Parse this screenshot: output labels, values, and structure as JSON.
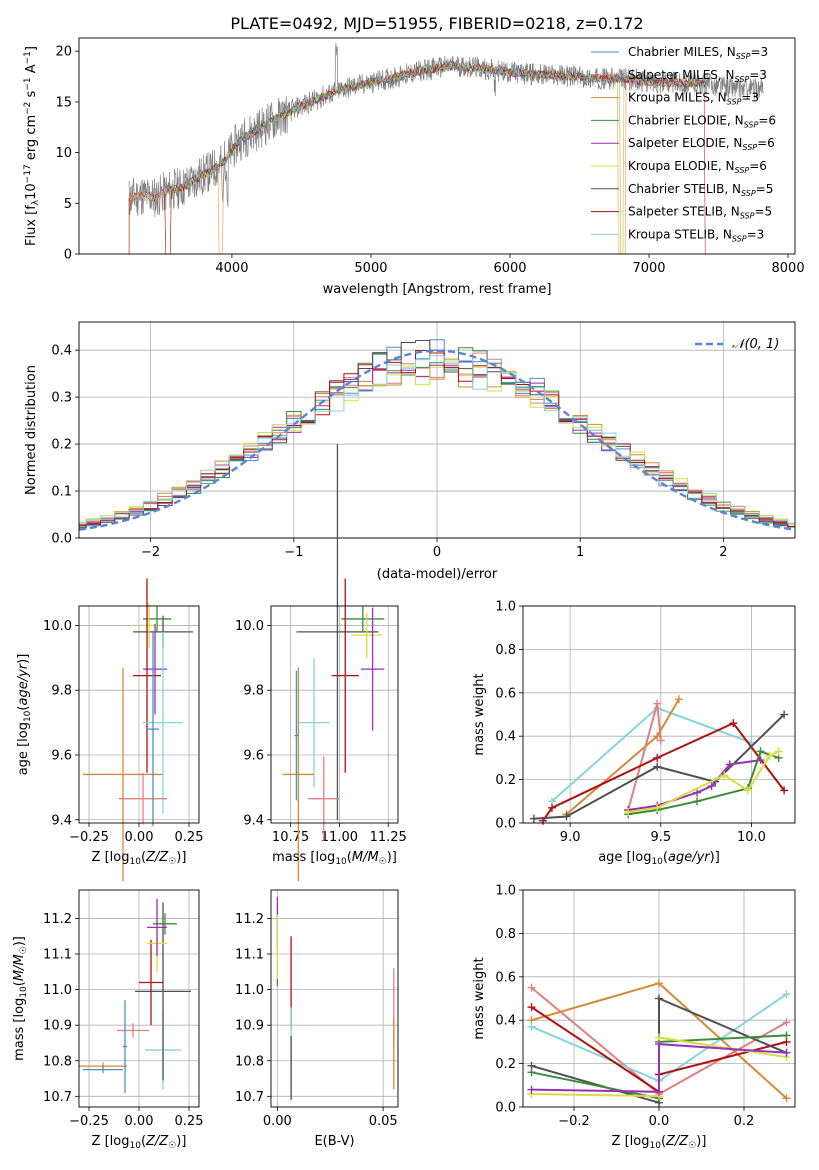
{
  "figure": {
    "title": "PLATE=0492, MJD=51955, FIBERID=0218, z=0.172"
  },
  "chart_data": [
    {
      "id": "spectrum",
      "type": "line",
      "xlabel": "wavelength [Angstrom, rest frame]",
      "ylabel": "Flux [f_λ10^-17 erg cm^-2 s^-1 A^-1]",
      "xlim": [
        2900,
        8050
      ],
      "ylim": [
        0,
        21.3
      ],
      "xticks": [
        "4000",
        "5000",
        "6000",
        "7000",
        "8000"
      ],
      "yticks": [
        "0",
        "5",
        "10",
        "15",
        "20"
      ],
      "grid": false,
      "legend_position": "top-right",
      "data_color": "#808080",
      "data_x_range": [
        3260,
        7820
      ],
      "data_notes": "observed spectrum (grey) overplotted with 9 model fits",
      "series": [
        {
          "name": "Chabrier MILES, N_SSP=3",
          "color": "#4d8fc6"
        },
        {
          "name": "Salpeter MILES, N_SSP=3",
          "color": "#e17f81"
        },
        {
          "name": "Kroupa MILES, N_SSP=3",
          "color": "#d58a38"
        },
        {
          "name": "Chabrier ELODIE, N_SSP=6",
          "color": "#3c8c3c"
        },
        {
          "name": "Salpeter ELODIE, N_SSP=6",
          "color": "#9b30b6"
        },
        {
          "name": "Kroupa ELODIE, N_SSP=6",
          "color": "#d4e040"
        },
        {
          "name": "Chabrier STELIB, N_SSP=5",
          "color": "#505050"
        },
        {
          "name": "Salpeter STELIB, N_SSP=5",
          "color": "#b01010"
        },
        {
          "name": "Kroupa STELIB, N_SSP=3",
          "color": "#86d4dc"
        }
      ],
      "anchors": [
        [
          3260,
          5.5
        ],
        [
          3350,
          5.8
        ],
        [
          3450,
          5.6
        ],
        [
          3550,
          6.3
        ],
        [
          3650,
          6.6
        ],
        [
          3750,
          7.5
        ],
        [
          3850,
          8.2
        ],
        [
          3950,
          9.2
        ],
        [
          4050,
          11.2
        ],
        [
          4150,
          12.0
        ],
        [
          4300,
          13.2
        ],
        [
          4450,
          14.3
        ],
        [
          4600,
          15.2
        ],
        [
          4800,
          16.3
        ],
        [
          5000,
          16.9
        ],
        [
          5200,
          17.5
        ],
        [
          5400,
          18.2
        ],
        [
          5600,
          18.6
        ],
        [
          5800,
          18.3
        ],
        [
          6000,
          17.9
        ],
        [
          6200,
          17.7
        ],
        [
          6400,
          17.6
        ],
        [
          6600,
          17.3
        ],
        [
          6800,
          17.3
        ],
        [
          7000,
          17.0
        ],
        [
          7200,
          16.9
        ],
        [
          7400,
          16.8
        ],
        [
          7600,
          16.4
        ],
        [
          7820,
          16.2
        ]
      ],
      "model_range": [
        3260,
        7420
      ],
      "model_cutoffs": [
        3540,
        3920,
        6780,
        6800,
        6810,
        7410
      ]
    },
    {
      "id": "residuals",
      "type": "histogram",
      "xlabel": "(data-model)/error",
      "ylabel": "Normed distribution",
      "xlim": [
        -2.5,
        2.5
      ],
      "ylim": [
        0,
        0.46
      ],
      "xticks": [
        "−2",
        "−1",
        "0",
        "1",
        "2"
      ],
      "yticks": [
        "0.0",
        "0.1",
        "0.2",
        "0.3",
        "0.4"
      ],
      "grid": true,
      "legend_position": "top-right",
      "reference_curve": {
        "label": "𝒩(0, 1)",
        "color": "#5b84d8",
        "mean": 0,
        "sigma": 1
      },
      "bin_width": 0.1,
      "histograms": [
        {
          "color": "#4d8fc6",
          "seed": 1
        },
        {
          "color": "#e17f81",
          "seed": 2
        },
        {
          "color": "#d58a38",
          "seed": 3
        },
        {
          "color": "#3c8c3c",
          "seed": 4
        },
        {
          "color": "#9b30b6",
          "seed": 5
        },
        {
          "color": "#d4e040",
          "seed": 6
        },
        {
          "color": "#505050",
          "seed": 7
        },
        {
          "color": "#b01010",
          "seed": 8
        },
        {
          "color": "#86d4dc",
          "seed": 9
        }
      ]
    },
    {
      "id": "age_vs_z",
      "type": "errorbar",
      "xlabel": "Z [log10(Z/Z☉)]",
      "ylabel": "age [log10(age/yr)]",
      "xlim": [
        -0.3,
        0.3
      ],
      "ylim": [
        9.39,
        10.06
      ],
      "xticks": [
        -0.25,
        0.0,
        0.25
      ],
      "xtick_labels": [
        "−0.25",
        "0.00",
        "0.25"
      ],
      "yticks": [
        9.4,
        9.6,
        9.8,
        10.0
      ],
      "ytick_labels": [
        "9.4",
        "9.6",
        "9.8",
        "10.0"
      ],
      "grid": true,
      "points": [
        {
          "color": "#505050",
          "x": 0.12,
          "xerr": 0.15,
          "y": 9.98,
          "yerr": 0.05
        },
        {
          "color": "#3c8c3c",
          "x": 0.09,
          "xerr": 0.07,
          "y": 10.02,
          "yerr": 0.04
        },
        {
          "color": "#d4e040",
          "x": 0.05,
          "xerr": 0.04,
          "y": 10.0,
          "yerr": 0.07
        },
        {
          "color": "#9b30b6",
          "x": 0.08,
          "xerr": 0.06,
          "y": 9.865,
          "yerr": 0.14
        },
        {
          "color": "#b01010",
          "x": 0.04,
          "xerr": 0.07,
          "y": 9.845,
          "yerr": 0.3
        },
        {
          "color": "#86d4dc",
          "x": 0.12,
          "xerr": 0.1,
          "y": 9.7,
          "yerr": 0.28
        },
        {
          "color": "#d58a38",
          "x": -0.08,
          "xerr": 0.2,
          "y": 9.54,
          "yerr": 0.33
        },
        {
          "color": "#e17f81",
          "x": 0.02,
          "xerr": 0.12,
          "y": 9.465,
          "yerr": 0.08
        },
        {
          "color": "#4d8fc6",
          "x": 0.07,
          "xerr": 0.03,
          "y": 9.68,
          "yerr": 0.3
        }
      ]
    },
    {
      "id": "age_vs_mass",
      "type": "errorbar",
      "xlabel": "mass [log10(M/M☉)]",
      "ylabel": "",
      "xlim": [
        10.65,
        11.3
      ],
      "ylim": [
        9.39,
        10.06
      ],
      "xticks": [
        10.75,
        11.0,
        11.25
      ],
      "xtick_labels": [
        "10.75",
        "11.00",
        "11.25"
      ],
      "yticks": [
        9.4,
        9.6,
        9.8,
        10.0
      ],
      "ytick_labels": [
        "9.4",
        "9.6",
        "9.8",
        "10.0"
      ],
      "grid": true,
      "points": [
        {
          "color": "#505050",
          "x": 10.99,
          "xerr": 0.21,
          "y": 9.98,
          "yerr": 0.58
        },
        {
          "color": "#3c8c3c",
          "x": 11.12,
          "xerr": 0.11,
          "y": 10.02,
          "yerr": 0.04
        },
        {
          "color": "#d4e040",
          "x": 11.14,
          "xerr": 0.08,
          "y": 9.97,
          "yerr": 0.07
        },
        {
          "color": "#9b30b6",
          "x": 11.17,
          "xerr": 0.06,
          "y": 9.865,
          "yerr": 0.19
        },
        {
          "color": "#b01010",
          "x": 11.03,
          "xerr": 0.07,
          "y": 9.845,
          "yerr": 0.3
        },
        {
          "color": "#86d4dc",
          "x": 10.87,
          "xerr": 0.08,
          "y": 9.7,
          "yerr": 0.2
        },
        {
          "color": "#d58a38",
          "x": 10.79,
          "xerr": 0.08,
          "y": 9.54,
          "yerr": 0.33
        },
        {
          "color": "#e17f81",
          "x": 10.92,
          "xerr": 0.08,
          "y": 9.465,
          "yerr": 0.13
        },
        {
          "color": "#4d8fc6",
          "x": 10.78,
          "xerr": 0.01,
          "y": 9.66,
          "yerr": 0.2
        }
      ]
    },
    {
      "id": "weight_vs_age",
      "type": "line",
      "xlabel": "age [log10(age/yr)]",
      "ylabel": "mass weight",
      "xlim": [
        8.74,
        10.24
      ],
      "ylim": [
        0,
        1
      ],
      "xticks": [
        9.0,
        9.5,
        10.0
      ],
      "xtick_labels": [
        "9.0",
        "9.5",
        "10.0"
      ],
      "yticks": [
        0,
        0.2,
        0.4,
        0.6,
        0.8,
        1.0
      ],
      "ytick_labels": [
        "0.0",
        "0.2",
        "0.4",
        "0.6",
        "0.8",
        "1.0"
      ],
      "grid": true,
      "series": [
        {
          "color": "#86d4dc",
          "points": [
            [
              8.9,
              0.1
            ],
            [
              9.48,
              0.53
            ],
            [
              10.0,
              0.37
            ]
          ]
        },
        {
          "color": "#e17f81",
          "points": [
            [
              9.32,
              0.06
            ],
            [
              9.48,
              0.55
            ],
            [
              9.5,
              0.38
            ]
          ]
        },
        {
          "color": "#d58a38",
          "points": [
            [
              8.98,
              0.04
            ],
            [
              9.48,
              0.4
            ],
            [
              9.6,
              0.57
            ]
          ]
        },
        {
          "color": "#b01010",
          "points": [
            [
              8.85,
              0.01
            ],
            [
              8.9,
              0.07
            ],
            [
              9.48,
              0.3
            ],
            [
              9.9,
              0.46
            ],
            [
              10.18,
              0.15
            ]
          ]
        },
        {
          "color": "#505050",
          "points": [
            [
              8.8,
              0.02
            ],
            [
              8.98,
              0.03
            ],
            [
              9.48,
              0.26
            ],
            [
              9.8,
              0.19
            ],
            [
              10.18,
              0.5
            ]
          ]
        },
        {
          "color": "#9b30b6",
          "points": [
            [
              9.32,
              0.06
            ],
            [
              9.48,
              0.08
            ],
            [
              9.7,
              0.14
            ],
            [
              9.78,
              0.17
            ],
            [
              9.88,
              0.27
            ],
            [
              10.05,
              0.29
            ]
          ]
        },
        {
          "color": "#3c8c3c",
          "points": [
            [
              9.32,
              0.04
            ],
            [
              9.48,
              0.06
            ],
            [
              9.7,
              0.1
            ],
            [
              9.98,
              0.16
            ],
            [
              10.05,
              0.33
            ],
            [
              10.15,
              0.3
            ]
          ]
        },
        {
          "color": "#d4e040",
          "points": [
            [
              9.32,
              0.05
            ],
            [
              9.48,
              0.07
            ],
            [
              9.85,
              0.22
            ],
            [
              9.98,
              0.15
            ],
            [
              10.1,
              0.31
            ],
            [
              10.15,
              0.33
            ]
          ]
        }
      ]
    },
    {
      "id": "mass_vs_z",
      "type": "errorbar",
      "xlabel": "Z [log10(Z/Z☉)]",
      "ylabel": "mass [log10(M/M☉)]",
      "xlim": [
        -0.3,
        0.3
      ],
      "ylim": [
        10.67,
        11.28
      ],
      "xticks": [
        -0.25,
        0.0,
        0.25
      ],
      "xtick_labels": [
        "−0.25",
        "0.00",
        "0.25"
      ],
      "yticks": [
        10.7,
        10.8,
        10.9,
        11.0,
        11.1,
        11.2
      ],
      "ytick_labels": [
        "10.7",
        "10.8",
        "10.9",
        "11.0",
        "11.1",
        "11.2"
      ],
      "grid": true,
      "points": [
        {
          "color": "#d58a38",
          "x": -0.18,
          "xerr": 0.12,
          "y": 10.785,
          "yerr": 0.01
        },
        {
          "color": "#4d8fc6",
          "x": -0.18,
          "xerr": 0.1,
          "y": 10.775,
          "yerr": 0.01
        },
        {
          "color": "#e17f81",
          "x": -0.03,
          "xerr": 0.08,
          "y": 10.885,
          "yerr": 0.02
        },
        {
          "color": "#86d4dc",
          "x": 0.12,
          "xerr": 0.09,
          "y": 10.83,
          "yerr": 0.11
        },
        {
          "color": "#505050",
          "x": 0.12,
          "xerr": 0.14,
          "y": 10.995,
          "yerr": 0.25
        },
        {
          "color": "#b01010",
          "x": 0.06,
          "xerr": 0.06,
          "y": 11.02,
          "yerr": 0.12
        },
        {
          "color": "#d4e040",
          "x": 0.09,
          "xerr": 0.05,
          "y": 11.13,
          "yerr": 0.08
        },
        {
          "color": "#3c8c3c",
          "x": 0.13,
          "xerr": 0.06,
          "y": 11.185,
          "yerr": 0.03
        },
        {
          "color": "#9b30b6",
          "x": 0.09,
          "xerr": 0.05,
          "y": 11.175,
          "yerr": 0.08
        },
        {
          "color": "#4d8fc6",
          "x": -0.07,
          "xerr": 0.01,
          "y": 10.84,
          "yerr": 0.13
        }
      ]
    },
    {
      "id": "mass_vs_ebv",
      "type": "errorbar",
      "xlabel": "E(B-V)",
      "ylabel": "",
      "xlim": [
        -0.003,
        0.057
      ],
      "ylim": [
        10.67,
        11.28
      ],
      "xticks": [
        0.0,
        0.05
      ],
      "xtick_labels": [
        "0.00",
        "0.05"
      ],
      "yticks": [
        10.7,
        10.8,
        10.9,
        11.0,
        11.1,
        11.2
      ],
      "ytick_labels": [
        "10.7",
        "10.8",
        "10.9",
        "11.0",
        "11.1",
        "11.2"
      ],
      "grid": true,
      "points": [
        {
          "color": "#9b30b6",
          "x": 0.0,
          "xerr": 0,
          "y": 11.19,
          "yerr": 0.07
        },
        {
          "color": "#d4e040",
          "x": 0.0,
          "xerr": 0,
          "y": 11.12,
          "yerr": 0.09
        },
        {
          "color": "#3c8c3c",
          "x": 0.0,
          "xerr": 0,
          "y": 11.02,
          "yerr": 0.01
        },
        {
          "color": "#b01010",
          "x": 0.0065,
          "xerr": 0,
          "y": 11.02,
          "yerr": 0.13
        },
        {
          "color": "#86d4dc",
          "x": 0.0065,
          "xerr": 0,
          "y": 10.82,
          "yerr": 0.13
        },
        {
          "color": "#505050",
          "x": 0.0065,
          "xerr": 0,
          "y": 10.78,
          "yerr": 0.09
        },
        {
          "color": "#e17f81",
          "x": 0.055,
          "xerr": 0,
          "y": 10.95,
          "yerr": 0.11
        },
        {
          "color": "#d58a38",
          "x": 0.055,
          "xerr": 0,
          "y": 10.82,
          "yerr": 0.1
        }
      ]
    },
    {
      "id": "weight_vs_z",
      "type": "line",
      "xlabel": "Z [log10(Z/Z☉)]",
      "ylabel": "mass weight",
      "xlim": [
        -0.32,
        0.32
      ],
      "ylim": [
        0,
        1
      ],
      "xticks": [
        -0.2,
        0.0,
        0.2
      ],
      "xtick_labels": [
        "−0.2",
        "0.0",
        "0.2"
      ],
      "yticks": [
        0,
        0.2,
        0.4,
        0.6,
        0.8,
        1.0
      ],
      "ytick_labels": [
        "0.0",
        "0.2",
        "0.4",
        "0.6",
        "0.8",
        "1.0"
      ],
      "grid": true,
      "series": [
        {
          "color": "#e17f81",
          "points": [
            [
              -0.3,
              0.55
            ],
            [
              0.0,
              0.06
            ],
            [
              0.3,
              0.39
            ]
          ]
        },
        {
          "color": "#d58a38",
          "points": [
            [
              -0.3,
              0.4
            ],
            [
              0.0,
              0.57
            ],
            [
              0.3,
              0.04
            ]
          ]
        },
        {
          "color": "#86d4dc",
          "points": [
            [
              -0.3,
              0.37
            ],
            [
              0.0,
              0.12
            ],
            [
              0.3,
              0.52
            ]
          ]
        },
        {
          "color": "#b01010",
          "points": [
            [
              -0.3,
              0.46
            ],
            [
              0.0,
              0.07
            ],
            [
              0.0,
              0.15
            ],
            [
              0.3,
              0.3
            ]
          ]
        },
        {
          "color": "#505050",
          "points": [
            [
              -0.3,
              0.19
            ],
            [
              0.0,
              0.02
            ],
            [
              0.0,
              0.5
            ],
            [
              0.3,
              0.25
            ]
          ]
        },
        {
          "color": "#3c8c3c",
          "points": [
            [
              -0.3,
              0.16
            ],
            [
              0.0,
              0.04
            ],
            [
              0.0,
              0.3
            ],
            [
              0.3,
              0.33
            ]
          ]
        },
        {
          "color": "#d4e040",
          "points": [
            [
              -0.3,
              0.06
            ],
            [
              0.0,
              0.05
            ],
            [
              0.0,
              0.32
            ],
            [
              0.3,
              0.23
            ]
          ]
        },
        {
          "color": "#9b30b6",
          "points": [
            [
              -0.3,
              0.08
            ],
            [
              0.0,
              0.07
            ],
            [
              0.0,
              0.29
            ],
            [
              0.3,
              0.25
            ]
          ]
        }
      ]
    }
  ]
}
